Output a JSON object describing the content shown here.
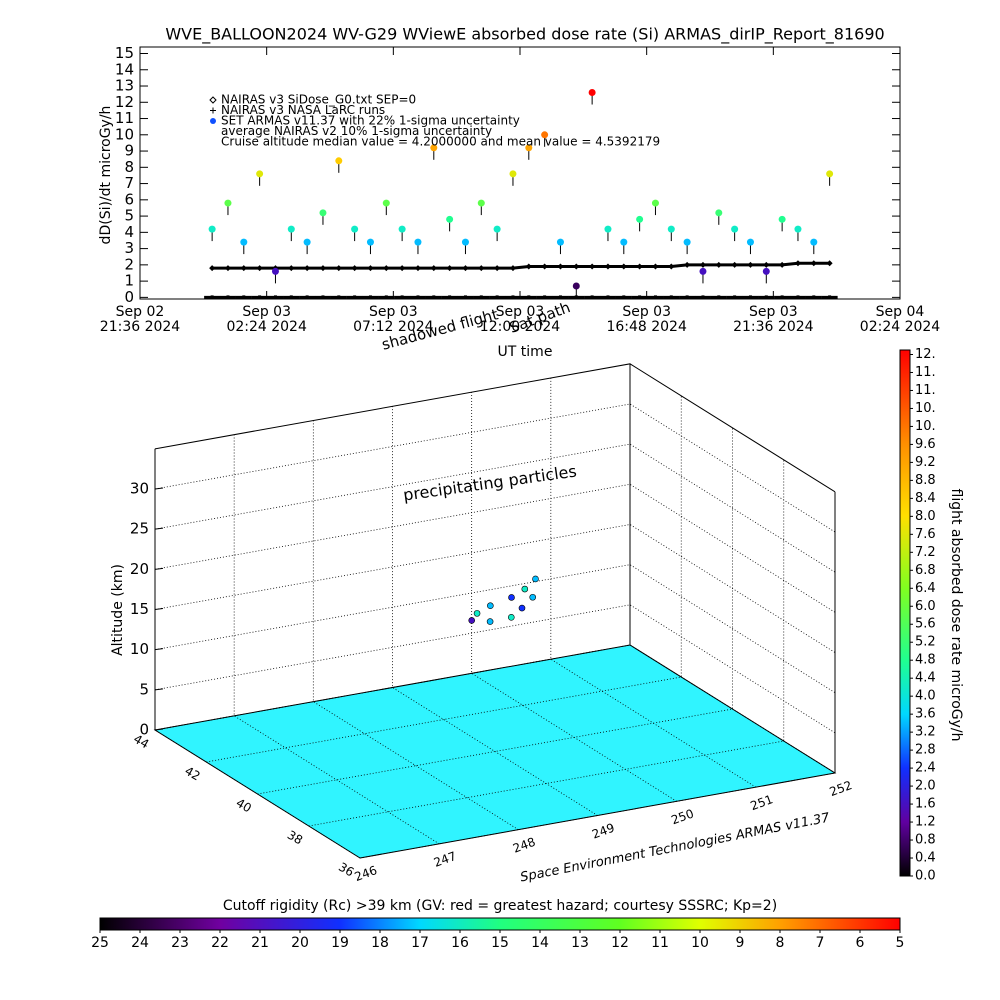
{
  "chart_data": [
    {
      "type": "scatter",
      "title": "WVE_BALLOON2024 WV-G29 WViewE absorbed dose rate (Si) ARMAS_dirIP_Report_81690",
      "ylabel": "dD(Si)/dt microGy/h",
      "xlabel": "UT time",
      "legend": "upper left",
      "legend_notes": [
        "average NAIRAS v2 10% 1-sigma uncertainty",
        "Cruise altitude median value = 4.2000000 and mean value = 4.5392179"
      ],
      "annotations": [
        "Sat path",
        "shadowed flight"
      ],
      "xlim": [
        "2024-09-02T21:36Z",
        "2024-09-04T02:24Z"
      ],
      "xticks": [
        {
          "value": "2024-09-02T21:36Z",
          "label": "Sep 02\n21:36 2024"
        },
        {
          "value": "2024-09-03T02:24Z",
          "label": "Sep 03\n02:24 2024"
        },
        {
          "value": "2024-09-03T07:12Z",
          "label": "Sep 03\n07:12 2024"
        },
        {
          "value": "2024-09-03T12:00Z",
          "label": "Sep 03\n12:00 2024"
        },
        {
          "value": "2024-09-03T16:48Z",
          "label": "Sep 03\n16:48 2024"
        },
        {
          "value": "2024-09-03T21:36Z",
          "label": "Sep 03\n21:36 2024"
        },
        {
          "value": "2024-09-04T02:24Z",
          "label": "Sep 04\n02:24 2024"
        }
      ],
      "ylim": [
        -0.1,
        15.4
      ],
      "yticks": [
        0,
        1,
        2,
        3,
        4,
        5,
        6,
        7,
        8,
        9,
        10,
        11,
        12,
        13,
        14,
        15
      ],
      "x": [
        "2024-09-03T00:20Z",
        "2024-09-03T00:56Z",
        "2024-09-03T01:32Z",
        "2024-09-03T02:08Z",
        "2024-09-03T02:44Z",
        "2024-09-03T03:20Z",
        "2024-09-03T03:56Z",
        "2024-09-03T04:32Z",
        "2024-09-03T05:08Z",
        "2024-09-03T05:44Z",
        "2024-09-03T06:20Z",
        "2024-09-03T06:56Z",
        "2024-09-03T07:32Z",
        "2024-09-03T08:08Z",
        "2024-09-03T08:44Z",
        "2024-09-03T09:20Z",
        "2024-09-03T09:56Z",
        "2024-09-03T10:32Z",
        "2024-09-03T11:08Z",
        "2024-09-03T11:44Z",
        "2024-09-03T12:20Z",
        "2024-09-03T12:56Z",
        "2024-09-03T13:32Z",
        "2024-09-03T14:08Z",
        "2024-09-03T14:44Z",
        "2024-09-03T15:20Z",
        "2024-09-03T15:56Z",
        "2024-09-03T16:32Z",
        "2024-09-03T17:08Z",
        "2024-09-03T17:44Z",
        "2024-09-03T18:20Z",
        "2024-09-03T18:56Z",
        "2024-09-03T19:32Z",
        "2024-09-03T20:08Z",
        "2024-09-03T20:44Z",
        "2024-09-03T21:20Z",
        "2024-09-03T21:56Z",
        "2024-09-03T22:32Z",
        "2024-09-03T23:08Z",
        "2024-09-03T23:44Z"
      ],
      "series": [
        {
          "name": "NAIRAS v3 SiDose_G0.txt SEP=0",
          "marker": "diamond",
          "color": "#000000",
          "values": [
            1.8,
            1.8,
            1.8,
            1.8,
            1.8,
            1.8,
            1.8,
            1.8,
            1.8,
            1.8,
            1.8,
            1.8,
            1.8,
            1.8,
            1.8,
            1.8,
            1.8,
            1.8,
            1.8,
            1.8,
            1.9,
            1.9,
            1.9,
            1.9,
            1.9,
            1.9,
            1.9,
            1.9,
            1.9,
            1.9,
            2.0,
            2.0,
            2.0,
            2.0,
            2.0,
            2.0,
            2.0,
            2.1,
            2.1,
            2.1
          ]
        },
        {
          "name": "NAIRAS v3 NASA LaRC runs",
          "marker": "plus",
          "color": "#000000",
          "values": [
            0,
            0,
            0,
            0,
            0,
            0,
            0,
            0,
            0,
            0,
            0,
            0,
            0,
            0,
            0,
            0,
            0,
            0,
            0,
            0,
            0,
            0,
            0,
            0,
            0,
            0,
            0,
            0,
            0,
            0,
            0,
            0,
            0,
            0,
            0,
            0,
            0,
            0,
            0,
            0
          ]
        },
        {
          "name": "SET ARMAS v11.37 with 22% 1-sigma uncertainty",
          "marker": "circle",
          "color": "#1050ff",
          "color_by_value": true,
          "values": [
            4.2,
            5.8,
            3.4,
            7.6,
            1.6,
            4.2,
            3.4,
            5.2,
            8.4,
            4.2,
            3.4,
            5.8,
            4.2,
            3.4,
            9.2,
            4.8,
            3.4,
            5.8,
            4.2,
            7.6,
            9.2,
            10.0,
            3.4,
            0.7,
            12.6,
            4.2,
            3.4,
            4.8,
            5.8,
            4.2,
            3.4,
            1.6,
            5.2,
            4.2,
            3.4,
            1.6,
            4.8,
            4.2,
            3.4,
            7.6
          ]
        }
      ]
    },
    {
      "type": "scatter3d",
      "zlabel": "Altitude (km)",
      "annotations": [
        "precipitating particles"
      ],
      "credit": "Space Environment Technologies ARMAS v11.37",
      "floor_color": "#30f4ff",
      "xlim": [
        246,
        252
      ],
      "xticks": [
        246,
        247,
        248,
        249,
        250,
        251,
        252
      ],
      "ylim": [
        36,
        44
      ],
      "yticks": [
        36,
        38,
        40,
        42,
        44
      ],
      "zlim": [
        0,
        35
      ],
      "zticks": [
        0,
        5,
        10,
        15,
        20,
        25,
        30
      ],
      "x": [
        249.9,
        249.7,
        249.5,
        249.2,
        249.0,
        248.9,
        249.1,
        249.4,
        249.6,
        249.8
      ],
      "y": [
        41.2,
        41.0,
        40.9,
        40.8,
        40.7,
        40.6,
        40.5,
        40.6,
        40.8,
        41.0
      ],
      "z": [
        17.5,
        17.0,
        16.5,
        16.2,
        15.8,
        15.3,
        15.0,
        14.8,
        15.2,
        15.8
      ],
      "values": [
        3.4,
        4.2,
        2.4,
        3.4,
        4.2,
        1.6,
        3.4,
        4.2,
        2.4,
        3.4
      ]
    },
    {
      "type": "colorbar",
      "orientation": "horizontal",
      "title": "Cutoff rigidity (Rc) >39 km (GV: red = greatest hazard; courtesy SSSRC; Kp=2)",
      "xlim": [
        25,
        5
      ],
      "xticks": [
        25,
        24,
        23,
        22,
        21,
        20,
        19,
        18,
        17,
        16,
        15,
        14,
        13,
        12,
        11,
        10,
        9,
        8,
        7,
        6,
        5
      ],
      "color_stops": [
        [
          25,
          "#000000"
        ],
        [
          22,
          "#7000a0"
        ],
        [
          19,
          "#1030ff"
        ],
        [
          17,
          "#00d8ff"
        ],
        [
          15,
          "#20ff80"
        ],
        [
          12,
          "#60ff20"
        ],
        [
          10,
          "#e0ff00"
        ],
        [
          8,
          "#ffa000"
        ],
        [
          5,
          "#ff0000"
        ]
      ]
    },
    {
      "type": "colorbar",
      "orientation": "vertical",
      "title": "flight absorbed dose rate microGy/h",
      "ylim": [
        0,
        11.7
      ],
      "yticks": [
        {
          "value": 0,
          "label": "0.0"
        },
        0.4,
        0.8,
        1.2,
        1.6,
        {
          "value": 2,
          "label": "2.0"
        },
        2.4,
        2.8,
        3.2,
        3.6,
        {
          "value": 4,
          "label": "4.0"
        },
        4.4,
        4.8,
        5.2,
        5.6,
        {
          "value": 6,
          "label": "6.0"
        },
        6.4,
        6.8,
        7.2,
        7.6,
        {
          "value": 8,
          "label": "8.0"
        },
        8.4,
        8.8,
        9.2,
        9.6,
        {
          "value": 10,
          "label": "10."
        },
        {
          "value": 10.4,
          "label": "10."
        },
        {
          "value": 10.8,
          "label": "11."
        },
        {
          "value": 11.2,
          "label": "11."
        },
        {
          "value": 11.6,
          "label": "12."
        }
      ],
      "color_stops": [
        [
          0,
          "#000000"
        ],
        [
          1.2,
          "#6000a0"
        ],
        [
          2.4,
          "#1030ff"
        ],
        [
          3.6,
          "#00d8ff"
        ],
        [
          4.8,
          "#20ff90"
        ],
        [
          6.4,
          "#80ff20"
        ],
        [
          8.0,
          "#ffe000"
        ],
        [
          9.6,
          "#ff9000"
        ],
        [
          11.7,
          "#ff0000"
        ]
      ]
    }
  ]
}
